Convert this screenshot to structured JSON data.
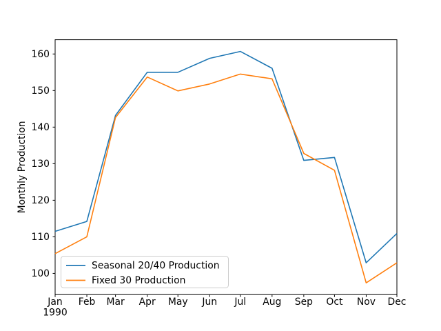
{
  "figure": {
    "background": "#ffffff",
    "axis_color": "#000000"
  },
  "chart_data": {
    "type": "line",
    "title": "",
    "xlabel": "",
    "ylabel": "Monthly Production",
    "x_tick_labels": [
      "Jan",
      "Feb",
      "Mar",
      "Apr",
      "May",
      "Jun",
      "Jul",
      "Aug",
      "Sep",
      "Oct",
      "Nov",
      "Dec"
    ],
    "x_first_tick_year": "1990",
    "y_ticks": [
      100,
      110,
      120,
      130,
      140,
      150,
      160
    ],
    "ylim": [
      94.2,
      163.9
    ],
    "grid": false,
    "legend": {
      "position": "lower-left",
      "border_color": "#cccccc",
      "background": "#ffffff"
    },
    "series": [
      {
        "name": "Seasonal 20/40 Production",
        "color": "#1f77b4",
        "values": [
          111.5,
          114.2,
          143.2,
          155.0,
          155.0,
          158.8,
          160.7,
          156.1,
          130.9,
          131.7,
          102.9,
          110.9
        ]
      },
      {
        "name": "Fixed 30 Production",
        "color": "#ff7f0e",
        "values": [
          105.4,
          110.0,
          142.6,
          153.7,
          149.9,
          151.8,
          154.5,
          153.2,
          132.8,
          128.2,
          97.4,
          102.9
        ]
      }
    ]
  }
}
